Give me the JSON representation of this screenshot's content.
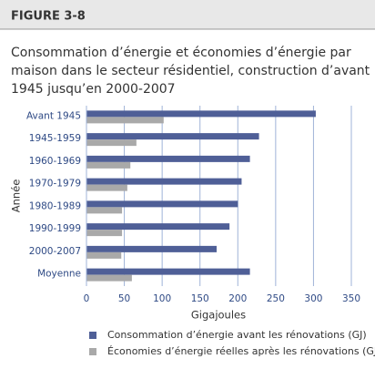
{
  "chart_data": {
    "type": "hbar",
    "figure_label": "FIGURE 3-8",
    "title_lines": [
      "Consommation d’énergie et économies d’énergie par",
      "maison dans le secteur résidentiel, construction d’avant",
      "1945 jusqu’en 2000-2007"
    ],
    "categories": [
      "Avant 1945",
      "1945-1959",
      "1960-1969",
      "1970-1979",
      "1980-1989",
      "1990-1999",
      "2000-2007",
      "Moyenne"
    ],
    "series": [
      {
        "name": "Consommation d’énergie avant les rénovations (GJ)",
        "color": "#4f5f97",
        "values": [
          303,
          228,
          216,
          205,
          200,
          189,
          172,
          216
        ]
      },
      {
        "name": "Économies d’énergie réelles après les rénovations (GJ)",
        "color": "#a9a9a9",
        "values": [
          102,
          66,
          58,
          54,
          47,
          47,
          46,
          60
        ]
      }
    ],
    "xlabel": "Gigajoules",
    "ylabel": "Année",
    "xlim": [
      0,
      350
    ],
    "xticks": [
      0,
      50,
      100,
      150,
      200,
      250,
      300,
      350
    ],
    "grid": true
  }
}
